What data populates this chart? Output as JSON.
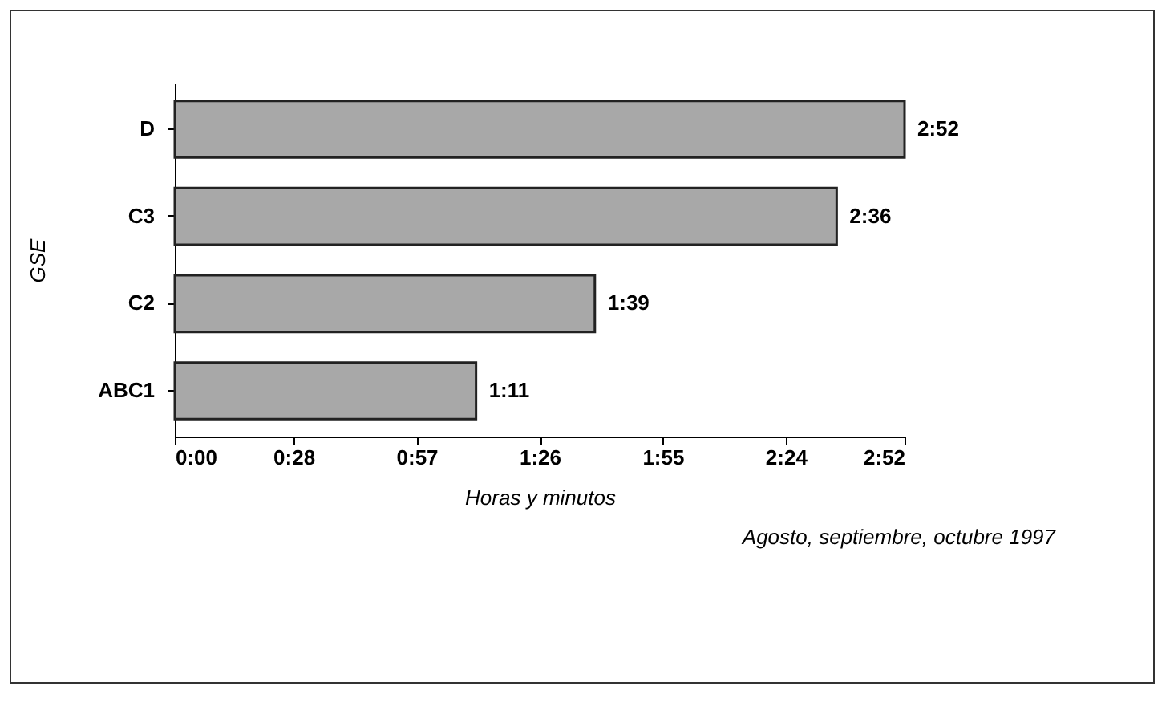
{
  "chart_data": {
    "type": "bar",
    "orientation": "horizontal",
    "xlabel": "Horas y minutos",
    "ylabel": "GSE",
    "categories": [
      "D",
      "C3",
      "C2",
      "ABC1"
    ],
    "values": [
      172,
      156,
      99,
      71
    ],
    "value_labels": [
      "2:52",
      "2:36",
      "1:39",
      "1:11"
    ],
    "color": "#a8a8a8",
    "xlim": [
      0,
      172
    ],
    "xticks": [
      {
        "value": 0,
        "label": "0:00"
      },
      {
        "value": 28,
        "label": "0:28"
      },
      {
        "value": 57,
        "label": "0:57"
      },
      {
        "value": 86,
        "label": "1:26"
      },
      {
        "value": 115,
        "label": "1:55"
      },
      {
        "value": 144,
        "label": "2:24"
      },
      {
        "value": 172,
        "label": "2:52"
      }
    ],
    "grid": false,
    "annotations": [
      "Agosto, septiembre, octubre 1997"
    ]
  }
}
